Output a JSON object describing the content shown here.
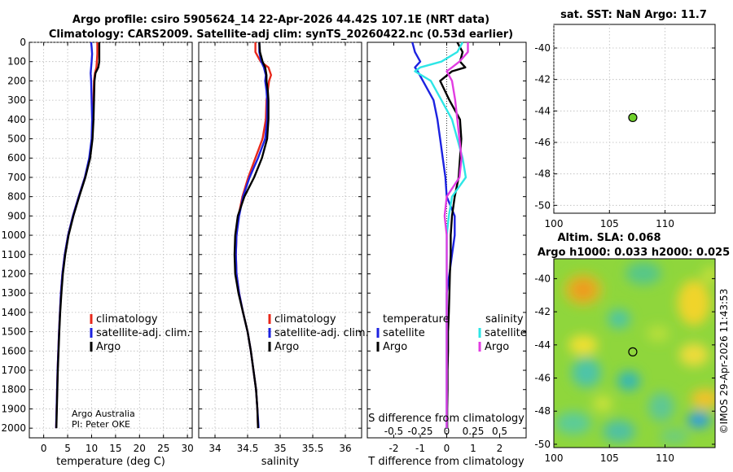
{
  "title": {
    "line1": "Argo profile: csiro 5905624_14 22-Apr-2026 44.42S 107.1E (NRT data)",
    "line2": "Climatology: CARS2009. Satellite-adj clim: synTS_20260422.nc (0.53d earlier)"
  },
  "credit": {
    "org": "Argo Australia",
    "pi": "PI: Peter OKE"
  },
  "watermark": "©IMOS 29-Apr-2026 11:43:53",
  "colors": {
    "climatology": "#e8281b",
    "satellite": "#1c22e0",
    "argo": "#000000",
    "sal_satellite": "#2ee6e6",
    "sal_argo": "#e23ce2",
    "marker": "#6fd02a"
  },
  "chart_data": [
    {
      "id": "temperature",
      "type": "line",
      "xlabel": "temperature (deg C)",
      "ylabel": "",
      "xlim": [
        -3,
        31
      ],
      "ylim": [
        2050,
        0
      ],
      "xticks": [
        0,
        5,
        10,
        15,
        20,
        25,
        30
      ],
      "yticks": [
        0,
        100,
        200,
        300,
        400,
        500,
        600,
        700,
        800,
        900,
        1000,
        1100,
        1200,
        1300,
        1400,
        1500,
        1600,
        1700,
        1800,
        1900,
        2000
      ],
      "grid": true,
      "legend": {
        "placement": "lower-right",
        "entries": [
          "climatology",
          "satellite-adj. clim.",
          "Argo"
        ]
      },
      "depth": [
        0,
        25,
        60,
        100,
        130,
        160,
        200,
        300,
        400,
        500,
        600,
        700,
        800,
        900,
        1000,
        1100,
        1200,
        1300,
        1400,
        1500,
        1600,
        1700,
        1800,
        1900,
        2000
      ],
      "series": [
        {
          "name": "climatology",
          "color_key": "climatology",
          "values": [
            11.2,
            11.2,
            11.2,
            11.1,
            11.0,
            10.7,
            10.5,
            10.4,
            10.3,
            10.1,
            9.6,
            8.6,
            7.3,
            6.1,
            5.1,
            4.4,
            3.9,
            3.6,
            3.4,
            3.2,
            3.05,
            2.9,
            2.8,
            2.7,
            2.6
          ]
        },
        {
          "name": "satellite-adj. clim.",
          "color_key": "satellite",
          "values": [
            9.9,
            10.0,
            10.1,
            10.0,
            9.9,
            9.8,
            9.9,
            10.0,
            10.1,
            10.0,
            9.5,
            8.6,
            7.3,
            6.1,
            5.1,
            4.4,
            3.9,
            3.6,
            3.4,
            3.2,
            3.05,
            2.9,
            2.8,
            2.7,
            2.6
          ]
        },
        {
          "name": "Argo",
          "color_key": "argo",
          "values": [
            11.6,
            11.6,
            11.6,
            11.6,
            11.4,
            10.8,
            10.6,
            10.5,
            10.4,
            10.2,
            9.7,
            8.7,
            7.4,
            6.2,
            5.2,
            4.5,
            4.0,
            3.7,
            3.45,
            3.25,
            3.1,
            2.95,
            2.85,
            2.75,
            2.65
          ]
        }
      ]
    },
    {
      "id": "salinity",
      "type": "line",
      "xlabel": "salinity",
      "ylabel": "",
      "xlim": [
        33.75,
        36.25
      ],
      "ylim": [
        2050,
        0
      ],
      "xticks": [
        34,
        34.5,
        35,
        35.5,
        36
      ],
      "grid": true,
      "legend": {
        "placement": "lower-right",
        "entries": [
          "climatology",
          "satellite-adj. clim.",
          "Argo"
        ]
      },
      "depth": [
        0,
        50,
        100,
        130,
        170,
        200,
        250,
        300,
        400,
        500,
        600,
        700,
        800,
        900,
        1000,
        1100,
        1200,
        1300,
        1400,
        1500,
        1600,
        1700,
        1800,
        1900,
        2000
      ],
      "series": [
        {
          "name": "climatology",
          "color_key": "climatology",
          "values": [
            34.62,
            34.62,
            34.7,
            34.82,
            34.86,
            34.83,
            34.81,
            34.79,
            34.78,
            34.73,
            34.62,
            34.51,
            34.42,
            34.36,
            34.33,
            34.32,
            34.33,
            34.37,
            34.43,
            34.5,
            34.55,
            34.59,
            34.63,
            34.65,
            34.66
          ]
        },
        {
          "name": "satellite-adj. clim.",
          "color_key": "satellite",
          "values": [
            34.68,
            34.68,
            34.71,
            34.75,
            34.78,
            34.77,
            34.79,
            34.8,
            34.8,
            34.77,
            34.66,
            34.53,
            34.43,
            34.37,
            34.33,
            34.32,
            34.33,
            34.37,
            34.43,
            34.5,
            34.55,
            34.59,
            34.63,
            34.65,
            34.67
          ]
        },
        {
          "name": "Argo",
          "color_key": "argo",
          "values": [
            34.68,
            34.69,
            34.73,
            34.77,
            34.79,
            34.79,
            34.81,
            34.82,
            34.82,
            34.8,
            34.72,
            34.6,
            34.45,
            34.35,
            34.31,
            34.3,
            34.31,
            34.36,
            34.43,
            34.5,
            34.55,
            34.59,
            34.63,
            34.65,
            34.66
          ]
        }
      ]
    },
    {
      "id": "difference",
      "type": "line",
      "xlabel": "T difference from climatology",
      "xlabel_top": "S difference from climatology",
      "xlim": [
        -3,
        3
      ],
      "ylim": [
        2050,
        0
      ],
      "xticks": [
        -2,
        -1,
        0,
        1,
        2
      ],
      "xticks_s": [
        -0.5,
        -0.25,
        0,
        0.25,
        0.5
      ],
      "xticks_s_labels": [
        "-0.5",
        "-0.25",
        "0",
        "0.25",
        "0.5"
      ],
      "grid": false,
      "legend": {
        "placement": "lower",
        "temperature_header": "temperature",
        "salinity_header": "salinity",
        "entries": [
          "satellite",
          "Argo"
        ]
      },
      "depth": [
        0,
        50,
        100,
        130,
        150,
        200,
        300,
        400,
        500,
        600,
        700,
        800,
        900,
        1000,
        1100,
        1200,
        1300,
        1400,
        1500,
        1600,
        1700,
        1800,
        1900,
        2000
      ],
      "series": [
        {
          "name": "satellite",
          "variable": "temperature",
          "color_key": "satellite",
          "values": [
            -1.3,
            -1.2,
            -1.0,
            -1.2,
            -1.1,
            -0.9,
            -0.5,
            -0.35,
            -0.25,
            -0.15,
            -0.05,
            0.0,
            0.3,
            0.3,
            0.2,
            0.1,
            0.0,
            0.0,
            0.0,
            0.0,
            0.0,
            0.0,
            0.0,
            0.0
          ]
        },
        {
          "name": "Argo",
          "variable": "temperature",
          "color_key": "argo",
          "values": [
            0.4,
            0.6,
            0.5,
            0.7,
            0.2,
            -0.25,
            0.1,
            0.5,
            0.55,
            0.5,
            0.45,
            0.3,
            0.2,
            0.15,
            0.15,
            0.12,
            0.1,
            0.08,
            0.05,
            0.05,
            0.03,
            0.03,
            0.02,
            0.02
          ]
        },
        {
          "name": "satellite",
          "variable": "salinity",
          "color_key": "sal_satellite",
          "values": [
            0.15,
            0.1,
            -0.05,
            -0.25,
            -0.3,
            -0.15,
            -0.05,
            0.05,
            0.1,
            0.15,
            0.18,
            0.05,
            0.02,
            0.0,
            0.0,
            0.0,
            0.0,
            0.0,
            0.0,
            0.0,
            0.0,
            0.0,
            0.0,
            0.0
          ]
        },
        {
          "name": "Argo",
          "variable": "salinity",
          "color_key": "sal_argo",
          "values": [
            0.2,
            0.2,
            0.12,
            0.05,
            0.0,
            0.05,
            0.08,
            0.1,
            0.12,
            0.14,
            0.12,
            0.0,
            -0.02,
            0.0,
            0.0,
            0.0,
            0.0,
            0.0,
            0.0,
            0.0,
            0.0,
            0.0,
            0.0,
            0.0
          ]
        }
      ]
    },
    {
      "id": "sst_map",
      "type": "scatter",
      "title": "sat. SST: NaN Argo: 11.7",
      "xlim": [
        100,
        114.5
      ],
      "ylim": [
        -50.5,
        -38.5
      ],
      "xticks": [
        100,
        105,
        110
      ],
      "yticks": [
        -40,
        -42,
        -44,
        -46,
        -48,
        -50
      ],
      "grid": true,
      "points": [
        {
          "lon": 107.1,
          "lat": -44.42
        }
      ]
    },
    {
      "id": "sla_map",
      "type": "heatmap",
      "title_line1": "Altim. SLA: 0.068",
      "title_line2": "Argo h1000: 0.033 h2000: 0.025",
      "xlim": [
        100,
        114.5
      ],
      "ylim": [
        -50.2,
        -38.8
      ],
      "xticks": [
        100,
        105,
        110
      ],
      "yticks": [
        -40,
        -42,
        -44,
        -46,
        -48,
        -50
      ],
      "points": [
        {
          "lon": 107.1,
          "lat": -44.42
        }
      ]
    }
  ]
}
